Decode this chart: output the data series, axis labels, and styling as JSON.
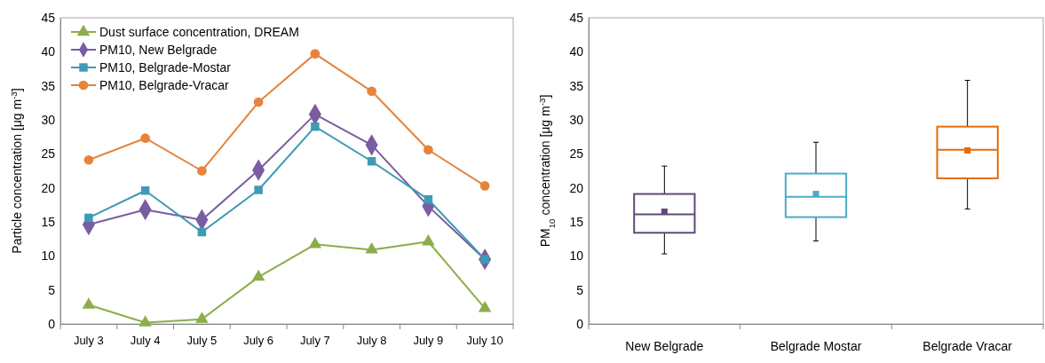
{
  "chart_data": [
    {
      "type": "line",
      "ylabel": "Particle concentration [μg m$^{-3}$]",
      "categories": [
        "July 3",
        "July 4",
        "July 5",
        "July 6",
        "July 7",
        "July 8",
        "July 9",
        "July 10"
      ],
      "ylim": [
        0,
        45
      ],
      "yticks": [
        0,
        5,
        10,
        15,
        20,
        25,
        30,
        35,
        40,
        45
      ],
      "legend": "top left",
      "grid": false,
      "series": [
        {
          "name": "Dust surface concentration, DREAM",
          "color": "#8bad4a",
          "marker": "triangle",
          "values": [
            2.8,
            0.2,
            0.7,
            6.9,
            11.7,
            10.9,
            12.1,
            2.3
          ]
        },
        {
          "name": "PM10, New Belgrade",
          "color": "#7a5ca0",
          "marker": "diamond",
          "values": [
            14.6,
            16.8,
            15.3,
            22.6,
            30.8,
            26.3,
            17.3,
            9.5
          ]
        },
        {
          "name": "PM10, Belgrade-Mostar",
          "color": "#3d9bb5",
          "marker": "square",
          "values": [
            15.6,
            19.6,
            13.5,
            19.7,
            29.0,
            23.9,
            18.3,
            9.5
          ]
        },
        {
          "name": "PM10, Belgrade-Vracar",
          "color": "#e5843d",
          "marker": "circle",
          "values": [
            24.1,
            27.3,
            22.5,
            32.6,
            39.7,
            34.2,
            25.6,
            20.3
          ]
        }
      ]
    },
    {
      "type": "box",
      "ylabel": "PM$_{10}$ concentration [μg m$^{-3}$]",
      "categories": [
        "New Belgrade",
        "Belgrade  Mostar",
        "Belgrade  Vracar"
      ],
      "ylim": [
        0,
        45
      ],
      "yticks": [
        0,
        5,
        10,
        15,
        20,
        25,
        30,
        35,
        40,
        45
      ],
      "grid": false,
      "marker": "square",
      "colors": [
        "#60497a",
        "#4bacc6",
        "#e46c0a"
      ],
      "boxes": [
        {
          "low": 10.3,
          "q1": 13.4,
          "median": 16.1,
          "q3": 19.1,
          "high": 23.2,
          "mean": 16.5
        },
        {
          "low": 12.2,
          "q1": 15.7,
          "median": 18.7,
          "q3": 22.1,
          "high": 26.7,
          "mean": 19.1
        },
        {
          "low": 16.9,
          "q1": 21.4,
          "median": 25.6,
          "q3": 29.0,
          "high": 35.8,
          "mean": 25.5
        }
      ]
    }
  ]
}
